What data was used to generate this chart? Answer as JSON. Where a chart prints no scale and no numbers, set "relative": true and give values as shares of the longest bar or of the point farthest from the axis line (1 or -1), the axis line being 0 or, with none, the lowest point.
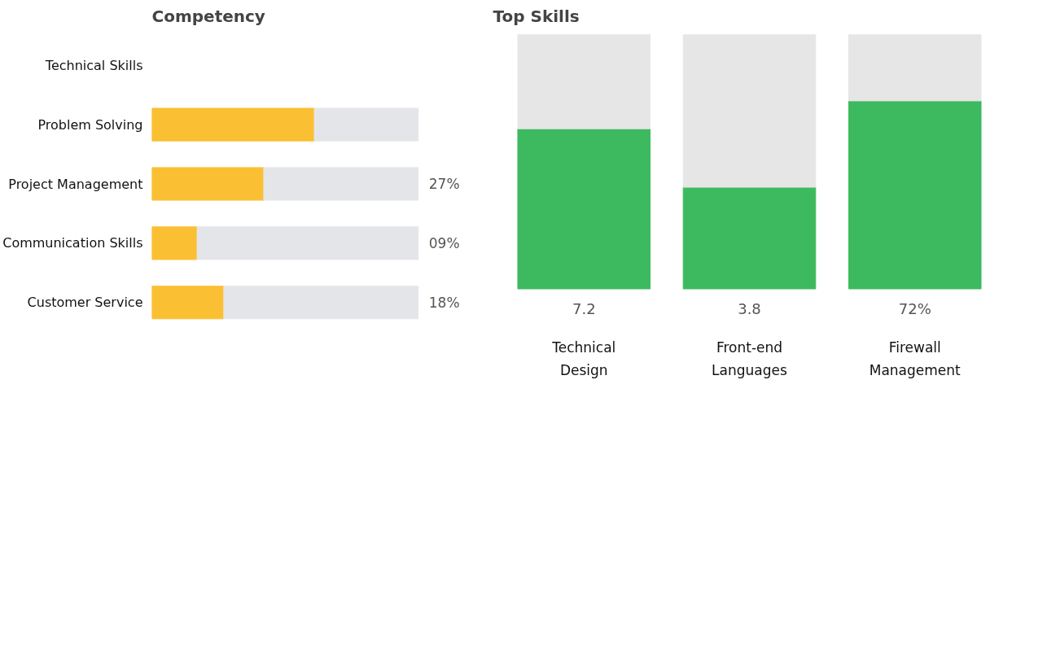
{
  "chart_data": [
    {
      "type": "bar",
      "title": "Top Skills",
      "categories": [
        "Technical Design",
        "Front-end Languages",
        "Firewall Management"
      ],
      "stacked": true,
      "relative": true,
      "annotations": [
        "7.2",
        "3.8",
        "72%"
      ],
      "series": [
        {
          "color": "#3dba5f",
          "values": [
            0.63,
            0.4,
            0.74
          ]
        },
        {
          "color": "#e6e6e6",
          "values": [
            0.37,
            0.6,
            0.26
          ]
        }
      ]
    },
    {
      "type": "bar",
      "title": "Competency",
      "orientation": "horizontal",
      "categories": [
        "Technical Skills",
        "Problem Solving",
        "Project Management",
        "Communication Skills",
        "Customer Service"
      ],
      "stacked": true,
      "relative": true,
      "annotations": [
        "27%",
        "09%",
        "18%"
      ],
      "series": [
        {
          "color": "#fbbf33",
          "values": [
            null,
            0.61,
            0.42,
            0.17,
            0.27
          ]
        },
        {
          "color": "#e4e5e9",
          "values": [
            null,
            0.39,
            0.58,
            0.83,
            0.73
          ]
        }
      ]
    }
  ]
}
